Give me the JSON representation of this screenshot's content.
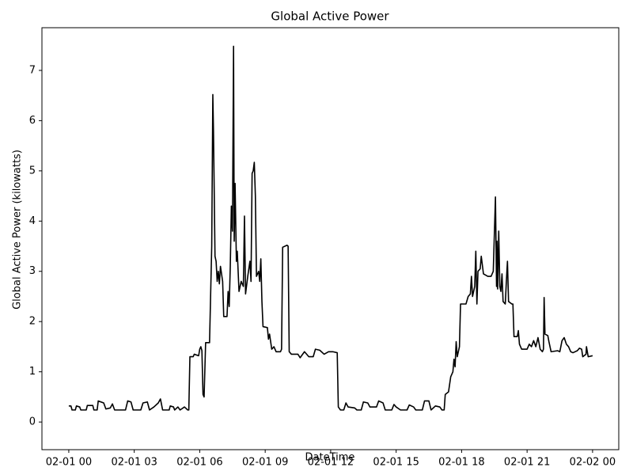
{
  "chart_data": {
    "type": "line",
    "title": "Global Active Power",
    "x_label": "DateTime",
    "y_label": "Global Active Power (kilowatts)",
    "xlim": [
      -1.23,
      25.2
    ],
    "ylim": [
      -0.55,
      7.85
    ],
    "xticks": [
      {
        "value": 0,
        "label": "02-01 00"
      },
      {
        "value": 3,
        "label": "02-01 03"
      },
      {
        "value": 6,
        "label": "02-01 06"
      },
      {
        "value": 9,
        "label": "02-01 09"
      },
      {
        "value": 12,
        "label": "02-01 12"
      },
      {
        "value": 15,
        "label": "02-01 15"
      },
      {
        "value": 18,
        "label": "02-01 18"
      },
      {
        "value": 21,
        "label": "02-01 21"
      },
      {
        "value": 24,
        "label": "02-02 00"
      }
    ],
    "yticks": [
      0,
      1,
      2,
      3,
      4,
      5,
      6,
      7
    ],
    "series": [
      {
        "color": "#000000",
        "x": [
          0,
          0.1,
          0.15,
          0.3,
          0.35,
          0.5,
          0.55,
          0.8,
          0.85,
          1.1,
          1.15,
          1.3,
          1.35,
          1.6,
          1.7,
          1.9,
          2.0,
          2.1,
          2.6,
          2.7,
          2.85,
          2.95,
          3.3,
          3.4,
          3.6,
          3.7,
          3.9,
          4.1,
          4.2,
          4.3,
          4.6,
          4.65,
          4.8,
          4.85,
          5.0,
          5.1,
          5.3,
          5.45,
          5.5,
          5.55,
          5.7,
          5.75,
          5.95,
          6.0,
          6.05,
          6.1,
          6.15,
          6.2,
          6.27,
          6.45,
          6.55,
          6.6,
          6.63,
          6.7,
          6.75,
          6.8,
          6.85,
          6.9,
          6.95,
          7.05,
          7.1,
          7.25,
          7.3,
          7.35,
          7.4,
          7.45,
          7.5,
          7.55,
          7.58,
          7.62,
          7.68,
          7.72,
          7.8,
          7.9,
          8.0,
          8.05,
          8.1,
          8.2,
          8.3,
          8.35,
          8.4,
          8.45,
          8.5,
          8.55,
          8.6,
          8.7,
          8.75,
          8.8,
          8.85,
          8.9,
          9.1,
          9.15,
          9.2,
          9.3,
          9.4,
          9.5,
          9.7,
          9.75,
          9.8,
          10.0,
          10.05,
          10.1,
          10.2,
          10.5,
          10.6,
          10.8,
          11.0,
          11.2,
          11.3,
          11.5,
          11.7,
          11.9,
          12.1,
          12.3,
          12.35,
          12.45,
          12.6,
          12.7,
          12.8,
          13.1,
          13.2,
          13.4,
          13.5,
          13.7,
          13.8,
          14.1,
          14.2,
          14.4,
          14.5,
          14.8,
          14.9,
          15.0,
          15.2,
          15.5,
          15.6,
          15.8,
          15.9,
          16.2,
          16.3,
          16.5,
          16.6,
          16.8,
          17.0,
          17.1,
          17.2,
          17.25,
          17.4,
          17.5,
          17.6,
          17.65,
          17.7,
          17.75,
          17.8,
          17.9,
          17.95,
          18.2,
          18.3,
          18.4,
          18.45,
          18.5,
          18.6,
          18.65,
          18.7,
          18.75,
          18.85,
          18.9,
          19.0,
          19.2,
          19.35,
          19.45,
          19.55,
          19.6,
          19.62,
          19.65,
          19.7,
          19.75,
          19.8,
          19.85,
          19.9,
          20.0,
          20.05,
          20.1,
          20.15,
          20.3,
          20.35,
          20.4,
          20.55,
          20.6,
          20.65,
          20.75,
          21.0,
          21.1,
          21.2,
          21.3,
          21.4,
          21.5,
          21.6,
          21.7,
          21.75,
          21.78,
          21.82,
          21.95,
          22.0,
          22.1,
          22.4,
          22.5,
          22.6,
          22.7,
          22.8,
          22.9,
          23.0,
          23.1,
          23.3,
          23.4,
          23.5,
          23.55,
          23.7,
          23.72,
          23.8,
          24.0
        ],
        "values": [
          0.32,
          0.32,
          0.24,
          0.24,
          0.32,
          0.3,
          0.24,
          0.24,
          0.33,
          0.33,
          0.24,
          0.24,
          0.42,
          0.38,
          0.26,
          0.28,
          0.36,
          0.24,
          0.24,
          0.42,
          0.4,
          0.24,
          0.24,
          0.38,
          0.4,
          0.24,
          0.3,
          0.38,
          0.46,
          0.24,
          0.24,
          0.32,
          0.3,
          0.24,
          0.3,
          0.24,
          0.3,
          0.24,
          0.24,
          1.3,
          1.3,
          1.35,
          1.32,
          1.45,
          1.5,
          1.42,
          0.55,
          0.5,
          1.58,
          1.58,
          3.5,
          6.52,
          5.8,
          3.3,
          3.2,
          2.8,
          3.0,
          2.75,
          3.1,
          2.8,
          2.1,
          2.1,
          2.6,
          2.3,
          3.1,
          4.3,
          3.8,
          7.48,
          3.6,
          4.75,
          3.2,
          3.4,
          2.6,
          2.8,
          2.7,
          4.1,
          2.55,
          2.9,
          3.2,
          2.8,
          4.95,
          5.0,
          5.17,
          4.5,
          2.9,
          3.0,
          2.8,
          3.25,
          2.4,
          1.9,
          1.88,
          1.65,
          1.75,
          1.45,
          1.5,
          1.4,
          1.4,
          1.45,
          3.48,
          3.52,
          3.5,
          1.4,
          1.35,
          1.35,
          1.28,
          1.4,
          1.3,
          1.3,
          1.45,
          1.43,
          1.35,
          1.4,
          1.4,
          1.38,
          0.3,
          0.24,
          0.24,
          0.38,
          0.3,
          0.28,
          0.24,
          0.24,
          0.4,
          0.38,
          0.3,
          0.3,
          0.42,
          0.38,
          0.24,
          0.24,
          0.35,
          0.3,
          0.24,
          0.24,
          0.34,
          0.3,
          0.24,
          0.24,
          0.42,
          0.42,
          0.24,
          0.32,
          0.3,
          0.24,
          0.24,
          0.55,
          0.6,
          0.9,
          1.0,
          1.25,
          1.1,
          1.6,
          1.3,
          1.5,
          2.35,
          2.35,
          2.5,
          2.55,
          2.9,
          2.5,
          2.7,
          3.4,
          2.35,
          3.0,
          3.05,
          3.3,
          2.95,
          2.9,
          2.9,
          3.0,
          4.48,
          2.7,
          3.6,
          2.65,
          3.8,
          2.7,
          2.6,
          2.95,
          2.4,
          2.35,
          2.8,
          3.2,
          2.4,
          2.35,
          2.35,
          1.7,
          1.7,
          1.82,
          1.55,
          1.45,
          1.45,
          1.55,
          1.5,
          1.62,
          1.5,
          1.68,
          1.45,
          1.4,
          1.45,
          2.48,
          1.75,
          1.72,
          1.6,
          1.4,
          1.42,
          1.4,
          1.62,
          1.68,
          1.55,
          1.5,
          1.4,
          1.38,
          1.42,
          1.47,
          1.45,
          1.3,
          1.35,
          1.5,
          1.3,
          1.32
        ]
      }
    ]
  }
}
